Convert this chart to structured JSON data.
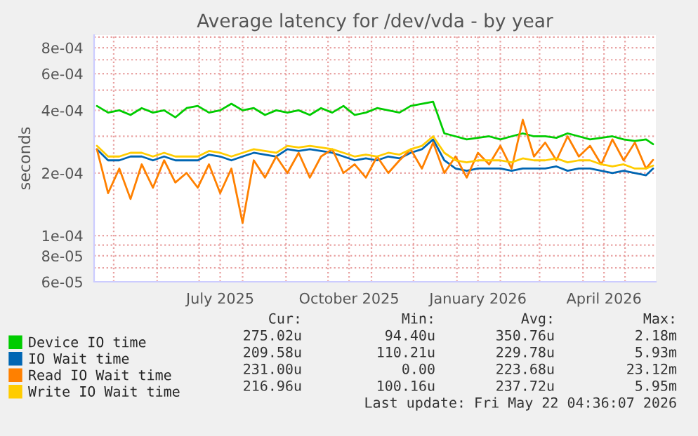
{
  "chart_data": {
    "type": "line",
    "title": "Average latency for /dev/vda - by year",
    "ylabel": "seconds",
    "log": "y",
    "grid": true,
    "legend": "bottom",
    "xlim": [
      "2025-04-17",
      "2026-05-23"
    ],
    "xticks": [
      {
        "value": "2025-05-01",
        "label": null
      },
      {
        "value": "2025-06-01",
        "label": null
      },
      {
        "value": "2025-07-01",
        "label": null
      },
      {
        "value": "2025-07-16",
        "label": "July 2025"
      },
      {
        "value": "2025-08-01",
        "label": null
      },
      {
        "value": "2025-09-01",
        "label": null
      },
      {
        "value": "2025-10-01",
        "label": null
      },
      {
        "value": "2025-10-16",
        "label": "October 2025"
      },
      {
        "value": "2025-11-01",
        "label": null
      },
      {
        "value": "2025-12-01",
        "label": null
      },
      {
        "value": "2026-01-01",
        "label": null
      },
      {
        "value": "2026-01-16",
        "label": "January 2026"
      },
      {
        "value": "2026-02-01",
        "label": null
      },
      {
        "value": "2026-03-01",
        "label": null
      },
      {
        "value": "2026-04-01",
        "label": null
      },
      {
        "value": "2026-04-16",
        "label": "April 2026"
      },
      {
        "value": "2026-05-01",
        "label": null
      }
    ],
    "ylim": [
      6e-05,
      0.00092
    ],
    "yticks": [
      {
        "value": 6e-05,
        "label": "6e-05"
      },
      {
        "value": 7e-05,
        "label": null
      },
      {
        "value": 8e-05,
        "label": "8e-05"
      },
      {
        "value": 9e-05,
        "label": null
      },
      {
        "value": 0.0001,
        "label": "1e-04"
      },
      {
        "value": 0.0002,
        "label": "2e-04"
      },
      {
        "value": 0.0003,
        "label": null
      },
      {
        "value": 0.0004,
        "label": "4e-04"
      },
      {
        "value": 0.0005,
        "label": null
      },
      {
        "value": 0.0006,
        "label": "6e-04"
      },
      {
        "value": 0.0007,
        "label": null
      },
      {
        "value": 0.0008,
        "label": "8e-04"
      },
      {
        "value": 0.0009,
        "label": null
      }
    ],
    "x": [
      "2025-04-19",
      "2025-04-27",
      "2025-05-05",
      "2025-05-13",
      "2025-05-21",
      "2025-05-29",
      "2025-06-06",
      "2025-06-14",
      "2025-06-22",
      "2025-06-30",
      "2025-07-08",
      "2025-07-16",
      "2025-07-24",
      "2025-08-01",
      "2025-08-09",
      "2025-08-17",
      "2025-08-25",
      "2025-09-02",
      "2025-09-10",
      "2025-09-18",
      "2025-09-26",
      "2025-10-04",
      "2025-10-12",
      "2025-10-20",
      "2025-10-28",
      "2025-11-05",
      "2025-11-13",
      "2025-11-21",
      "2025-11-29",
      "2025-12-07",
      "2025-12-15",
      "2025-12-23",
      "2025-12-31",
      "2026-01-08",
      "2026-01-16",
      "2026-01-24",
      "2026-02-01",
      "2026-02-09",
      "2026-02-17",
      "2026-02-25",
      "2026-03-05",
      "2026-03-13",
      "2026-03-21",
      "2026-03-29",
      "2026-04-06",
      "2026-04-14",
      "2026-04-22",
      "2026-04-30",
      "2026-05-08",
      "2026-05-16",
      "2026-05-21"
    ],
    "series": [
      {
        "name": "Device IO time",
        "color": "#00cc00",
        "values": [
          0.00042,
          0.00039,
          0.0004,
          0.00038,
          0.00041,
          0.00039,
          0.0004,
          0.00037,
          0.00041,
          0.00042,
          0.00039,
          0.0004,
          0.00043,
          0.0004,
          0.00041,
          0.00038,
          0.0004,
          0.00039,
          0.0004,
          0.00038,
          0.00041,
          0.00039,
          0.00042,
          0.00038,
          0.00039,
          0.00041,
          0.0004,
          0.00039,
          0.00042,
          0.00043,
          0.00044,
          0.00031,
          0.0003,
          0.00029,
          0.000295,
          0.0003,
          0.00029,
          0.0003,
          0.00031,
          0.0003,
          0.0003,
          0.000295,
          0.00031,
          0.0003,
          0.00029,
          0.000295,
          0.0003,
          0.00029,
          0.000285,
          0.00029,
          0.000275
        ]
      },
      {
        "name": "IO Wait time",
        "color": "#0066b3",
        "values": [
          0.00026,
          0.00023,
          0.00023,
          0.00024,
          0.00024,
          0.00023,
          0.00024,
          0.00023,
          0.00023,
          0.00023,
          0.000245,
          0.00024,
          0.00023,
          0.00024,
          0.00025,
          0.000245,
          0.00024,
          0.00026,
          0.000255,
          0.00026,
          0.000255,
          0.00025,
          0.00024,
          0.00023,
          0.000235,
          0.00023,
          0.00024,
          0.000235,
          0.00025,
          0.00026,
          0.00029,
          0.00023,
          0.00021,
          0.000205,
          0.00021,
          0.00021,
          0.00021,
          0.000205,
          0.00021,
          0.00021,
          0.00021,
          0.000215,
          0.000205,
          0.00021,
          0.00021,
          0.000205,
          0.0002,
          0.000205,
          0.0002,
          0.000195,
          0.00021
        ]
      },
      {
        "name": "Read IO Wait time",
        "color": "#ff8000",
        "values": [
          0.00026,
          0.00016,
          0.00021,
          0.00015,
          0.00022,
          0.00017,
          0.00023,
          0.00018,
          0.0002,
          0.00017,
          0.00022,
          0.00016,
          0.00021,
          0.000115,
          0.00023,
          0.00019,
          0.00024,
          0.0002,
          0.00025,
          0.00019,
          0.00024,
          0.00026,
          0.0002,
          0.00022,
          0.00019,
          0.00024,
          0.0002,
          0.00023,
          0.00026,
          0.00021,
          0.00028,
          0.0002,
          0.00024,
          0.00019,
          0.00025,
          0.00022,
          0.00027,
          0.00021,
          0.00036,
          0.00024,
          0.00028,
          0.00023,
          0.0003,
          0.00024,
          0.00027,
          0.00022,
          0.00029,
          0.00023,
          0.00028,
          0.00021,
          0.000231
        ]
      },
      {
        "name": "Write IO Wait time",
        "color": "#ffcc00",
        "values": [
          0.00027,
          0.00024,
          0.00024,
          0.00025,
          0.00025,
          0.00024,
          0.00025,
          0.00024,
          0.00024,
          0.00024,
          0.000255,
          0.00025,
          0.00024,
          0.00025,
          0.00026,
          0.000255,
          0.00025,
          0.00027,
          0.000265,
          0.00027,
          0.000265,
          0.00026,
          0.00025,
          0.00024,
          0.000245,
          0.00024,
          0.00025,
          0.000245,
          0.00026,
          0.00027,
          0.0003,
          0.00025,
          0.00023,
          0.000225,
          0.00023,
          0.00023,
          0.00023,
          0.000225,
          0.000235,
          0.00023,
          0.00023,
          0.000235,
          0.000225,
          0.00023,
          0.00023,
          0.00022,
          0.000215,
          0.00022,
          0.00021,
          0.00021,
          0.000217
        ]
      }
    ],
    "annotations": [
      "Cur:",
      "Min:",
      "Avg:",
      "Max:",
      "275.02u",
      "94.40u",
      "350.76u",
      "2.18m",
      "209.58u",
      "110.21u",
      "229.78u",
      "5.93m",
      "231.00u",
      "0.00",
      "223.68u",
      "23.12m",
      "216.96u",
      "100.16u",
      "237.72u",
      "5.95m",
      "Last update: Fri May 22 04:36:07 2026"
    ]
  }
}
